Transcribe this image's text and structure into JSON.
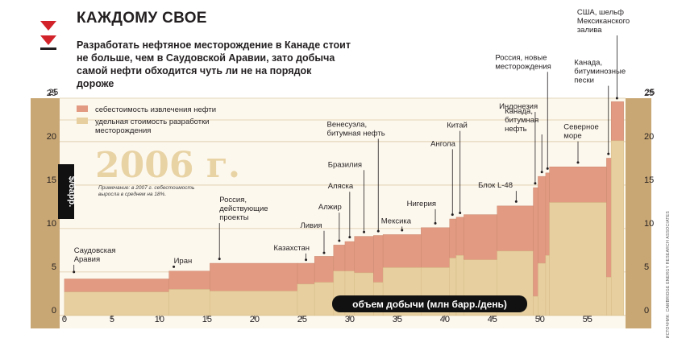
{
  "header": {
    "title": "КАЖДОМУ СВОЕ",
    "subtitle": "Разработать нефтяное месторождение в Канаде стоит не больше, чем в Саудовской Аравии, зато добыча самой нефти обходится чуть ли не на порядок дороже"
  },
  "colors": {
    "frame": "#c9a774",
    "plot_bg": "#fdf8ee",
    "extraction_cost": "#e39a82",
    "development_cost": "#e7cf9f",
    "axis_pill": "#111111",
    "logo_red": "#d2232a"
  },
  "chart_data": {
    "type": "area",
    "title": "2006 г.",
    "ylabel": "$/барр.",
    "xlabel": "объем добычи (млн барр./день)",
    "xlim": [
      -0.5,
      59
    ],
    "ylim": [
      -1.5,
      25
    ],
    "x_ticks": [
      0,
      5,
      10,
      15,
      20,
      25,
      30,
      35,
      40,
      45,
      50,
      55
    ],
    "y_ticks": [
      0,
      5,
      10,
      15,
      20,
      25
    ],
    "grid": true,
    "legend": {
      "position": "top-left",
      "items": [
        {
          "label": "себестоимость извлечения нефти",
          "color": "#e39a82"
        },
        {
          "label": "удельная стоимость разработки месторождения",
          "color": "#e7cf9f"
        }
      ]
    },
    "note": "Примечание: в 2007 г. себестоимость выросла в среднем на 18%.",
    "series": [
      {
        "name": "удельная стоимость разработки месторождения",
        "key": "dev"
      },
      {
        "name": "себестоимость извлечения нефти",
        "key": "total"
      }
    ],
    "segments": [
      {
        "x0": 0.0,
        "x1": 11.0,
        "dev": 2.7,
        "total": 4.2,
        "label": "Саудовская Аравия"
      },
      {
        "x0": 11.0,
        "x1": 15.3,
        "dev": 3.0,
        "total": 5.1,
        "label": "Иран"
      },
      {
        "x0": 15.3,
        "x1": 24.5,
        "dev": 2.8,
        "total": 6.0,
        "label": "Россия, действующие проекты"
      },
      {
        "x0": 24.5,
        "x1": 26.3,
        "dev": 3.6,
        "total": 6.0,
        "label": "Казахстан"
      },
      {
        "x0": 26.3,
        "x1": 28.3,
        "dev": 3.8,
        "total": 6.8,
        "label": "Ливия"
      },
      {
        "x0": 28.3,
        "x1": 29.5,
        "dev": 5.1,
        "total": 8.1,
        "label": "Алжир"
      },
      {
        "x0": 29.5,
        "x1": 30.5,
        "dev": 5.1,
        "total": 8.5,
        "label": "Аляска"
      },
      {
        "x0": 30.5,
        "x1": 32.5,
        "dev": 4.9,
        "total": 9.1,
        "label": "Бразилия"
      },
      {
        "x0": 32.5,
        "x1": 33.5,
        "dev": 3.8,
        "total": 9.2,
        "label": "Венесуэла, битумная нефть"
      },
      {
        "x0": 33.5,
        "x1": 37.5,
        "dev": 5.5,
        "total": 9.3,
        "label": "Мексика"
      },
      {
        "x0": 37.5,
        "x1": 40.5,
        "dev": 5.5,
        "total": 10.1,
        "label": "Нигерия"
      },
      {
        "x0": 40.5,
        "x1": 41.2,
        "dev": 6.6,
        "total": 11.1,
        "label": "Ангола"
      },
      {
        "x0": 41.2,
        "x1": 42.0,
        "dev": 6.9,
        "total": 11.3,
        "label": "Китай"
      },
      {
        "x0": 42.0,
        "x1": 45.5,
        "dev": 6.4,
        "total": 11.6,
        "label": ""
      },
      {
        "x0": 45.5,
        "x1": 49.3,
        "dev": 7.4,
        "total": 12.6,
        "label": "Блок L-48"
      },
      {
        "x0": 49.3,
        "x1": 49.8,
        "dev": 2.2,
        "total": 14.7,
        "label": "Индонезия"
      },
      {
        "x0": 49.8,
        "x1": 50.6,
        "dev": 6.0,
        "total": 16.0,
        "label": "Канада, битумная нефть"
      },
      {
        "x0": 50.6,
        "x1": 51.0,
        "dev": 6.9,
        "total": 16.4,
        "label": "Россия, новые месторождения"
      },
      {
        "x0": 51.0,
        "x1": 57.0,
        "dev": 13.0,
        "total": 17.1,
        "label": "Северное море"
      },
      {
        "x0": 57.0,
        "x1": 57.5,
        "dev": 4.4,
        "total": 18.1,
        "label": "Канада, битуминозные пески"
      },
      {
        "x0": 57.5,
        "x1": 58.8,
        "dev": 20.1,
        "total": 24.6,
        "label": "США, шельф Мексиканского залива"
      }
    ]
  },
  "callouts": [
    {
      "text": [
        "Саудовская",
        "Аравия"
      ],
      "x": 1.0,
      "ly": 6.2,
      "lx": 1.0,
      "ty": 5.0
    },
    {
      "text": [
        "Иран"
      ],
      "x": 11.5,
      "ly": 6.0,
      "lx": 11.5,
      "ty": 5.6
    },
    {
      "text": [
        "Россия,",
        "действующие",
        "проекты"
      ],
      "x": 16.3,
      "ly": 11.0,
      "lx": 16.3,
      "ty": 6.5
    },
    {
      "text": [
        "Казахстан"
      ],
      "x": 22.0,
      "ly": 7.5,
      "lx": 25.4,
      "ty": 6.4
    },
    {
      "text": [
        "Ливия"
      ],
      "x": 24.8,
      "ly": 10.1,
      "lx": 27.3,
      "ty": 7.2
    },
    {
      "text": [
        "Алжир"
      ],
      "x": 26.7,
      "ly": 12.2,
      "lx": 28.9,
      "ty": 8.6
    },
    {
      "text": [
        "Аляска"
      ],
      "x": 27.7,
      "ly": 14.6,
      "lx": 30.0,
      "ty": 9.0
    },
    {
      "text": [
        "Бразилия"
      ],
      "x": 27.7,
      "ly": 17.1,
      "lx": 31.5,
      "ty": 9.6
    },
    {
      "text": [
        "Венесуэла,",
        "битумная нефть"
      ],
      "x": 27.6,
      "ly": 20.7,
      "lx": 33.0,
      "ty": 9.7
    },
    {
      "text": [
        "Мексика"
      ],
      "x": 33.3,
      "ly": 10.6,
      "lx": 35.5,
      "ty": 9.8
    },
    {
      "text": [
        "Нигерия"
      ],
      "x": 36.0,
      "ly": 12.6,
      "lx": 39.0,
      "ty": 10.6
    },
    {
      "text": [
        "Ангола"
      ],
      "x": 38.5,
      "ly": 19.5,
      "lx": 40.8,
      "ty": 11.6
    },
    {
      "text": [
        "Китай"
      ],
      "x": 40.2,
      "ly": 21.6,
      "lx": 41.6,
      "ty": 11.8
    },
    {
      "text": [
        "Блок L-48"
      ],
      "x": 43.5,
      "ly": 14.7,
      "lx": 47.5,
      "ty": 13.1
    },
    {
      "text": [
        "Индонезия"
      ],
      "x": 45.7,
      "ly": 23.8,
      "lx": 49.5,
      "ty": 15.2
    },
    {
      "text": [
        "Канада,",
        "битумная",
        "нефть"
      ],
      "x": 46.3,
      "ly": 21.2,
      "lx": 50.2,
      "ty": 16.5
    },
    {
      "text": [
        "Россия, новые",
        "месторождения"
      ],
      "x": 45.3,
      "ly": 28.4,
      "lx": 50.8,
      "ty": 16.9
    },
    {
      "text": [
        "Северное",
        "море"
      ],
      "x": 52.5,
      "ly": 20.4,
      "lx": 54.0,
      "ty": 17.6
    },
    {
      "text": [
        "Канада,",
        "битуминозные",
        "пески"
      ],
      "x": 53.6,
      "ly": 26.8,
      "lx": 57.2,
      "ty": 18.6
    },
    {
      "text": [
        "США, шельф",
        "Мексиканского",
        "залива"
      ],
      "x": 53.9,
      "ly": 32.6,
      "lx": 58.1,
      "ty": 25.0
    }
  ],
  "credit": "ИСТОЧНИК: CAMBRIDGE ENERGY RESEARCH ASSOCIATES"
}
